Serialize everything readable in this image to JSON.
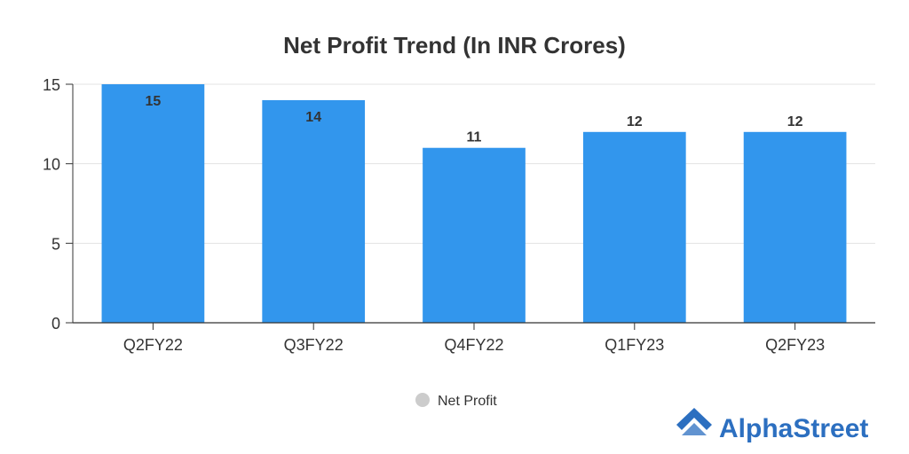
{
  "chart_data": {
    "type": "bar",
    "title": "Net Profit Trend (In INR Crores)",
    "categories": [
      "Q2FY22",
      "Q3FY22",
      "Q4FY22",
      "Q1FY23",
      "Q2FY23"
    ],
    "series": [
      {
        "name": "Net Profit",
        "values": [
          15,
          14,
          11,
          12,
          12
        ]
      }
    ],
    "data_labels": [
      "15",
      "14",
      "11",
      "12",
      "12"
    ],
    "yticks": [
      "0",
      "5",
      "10",
      "15"
    ],
    "ytick_values": [
      0,
      5,
      10,
      15
    ],
    "ylim": [
      0,
      15
    ],
    "grid": true,
    "legend_placement": "bottom",
    "bar_color": "#3296ED",
    "legend_marker_color": "#CCCCCC"
  },
  "brand": {
    "name": "AlphaStreet",
    "color": "#2C6FC0",
    "icon": "alphastreet-logo-icon"
  }
}
